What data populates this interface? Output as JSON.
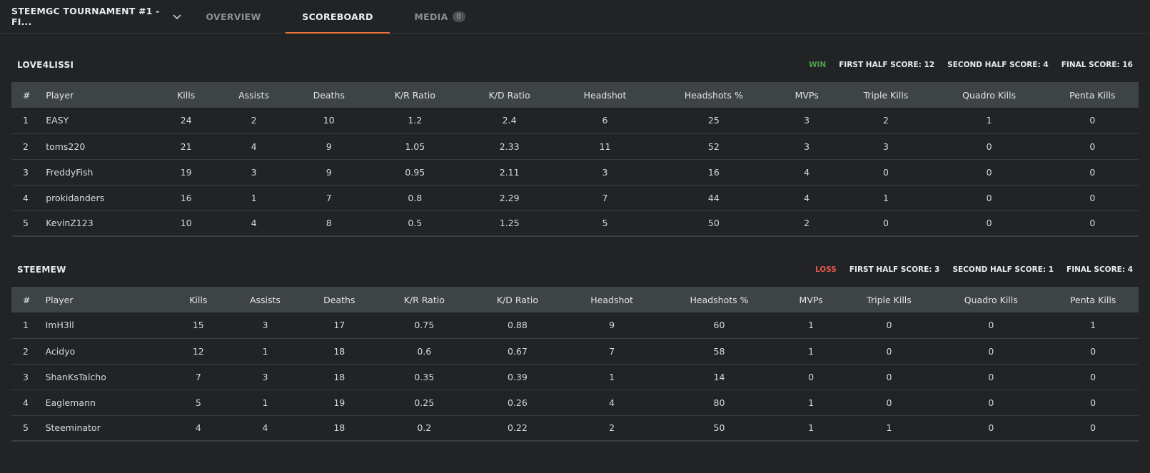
{
  "header": {
    "event_title": "STEEMGC TOURNAMENT #1 - FI...",
    "tabs": {
      "overview": "OVERVIEW",
      "scoreboard": "SCOREBOARD",
      "media": "MEDIA",
      "media_count": "0"
    }
  },
  "columns": [
    "#",
    "Player",
    "Kills",
    "Assists",
    "Deaths",
    "K/R Ratio",
    "K/D Ratio",
    "Headshot",
    "Headshots %",
    "MVPs",
    "Triple Kills",
    "Quadro Kills",
    "Penta Kills"
  ],
  "teams": [
    {
      "name": "LOVE4LISSI",
      "result": "WIN",
      "first_half": "FIRST HALF SCORE: 12",
      "second_half": "SECOND HALF SCORE: 4",
      "final": "FINAL SCORE: 16",
      "players": [
        [
          "1",
          "EASY",
          "24",
          "2",
          "10",
          "1.2",
          "2.4",
          "6",
          "25",
          "3",
          "2",
          "1",
          "0"
        ],
        [
          "2",
          "toms220",
          "21",
          "4",
          "9",
          "1.05",
          "2.33",
          "11",
          "52",
          "3",
          "3",
          "0",
          "0"
        ],
        [
          "3",
          "FreddyFish",
          "19",
          "3",
          "9",
          "0.95",
          "2.11",
          "3",
          "16",
          "4",
          "0",
          "0",
          "0"
        ],
        [
          "4",
          "prokidanders",
          "16",
          "1",
          "7",
          "0.8",
          "2.29",
          "7",
          "44",
          "4",
          "1",
          "0",
          "0"
        ],
        [
          "5",
          "KevinZ123",
          "10",
          "4",
          "8",
          "0.5",
          "1.25",
          "5",
          "50",
          "2",
          "0",
          "0",
          "0"
        ]
      ]
    },
    {
      "name": "STEEMEW",
      "result": "LOSS",
      "first_half": "FIRST HALF SCORE: 3",
      "second_half": "SECOND HALF SCORE: 1",
      "final": "FINAL SCORE: 4",
      "players": [
        [
          "1",
          "ImH3ll",
          "15",
          "3",
          "17",
          "0.75",
          "0.88",
          "9",
          "60",
          "1",
          "0",
          "0",
          "1"
        ],
        [
          "2",
          "Acidyo",
          "12",
          "1",
          "18",
          "0.6",
          "0.67",
          "7",
          "58",
          "1",
          "0",
          "0",
          "0"
        ],
        [
          "3",
          "ShanKsTalcho",
          "7",
          "3",
          "18",
          "0.35",
          "0.39",
          "1",
          "14",
          "0",
          "0",
          "0",
          "0"
        ],
        [
          "4",
          "Eaglemann",
          "5",
          "1",
          "19",
          "0.25",
          "0.26",
          "4",
          "80",
          "1",
          "0",
          "0",
          "0"
        ],
        [
          "5",
          "Steeminator",
          "4",
          "4",
          "18",
          "0.2",
          "0.22",
          "2",
          "50",
          "1",
          "1",
          "0",
          "0"
        ]
      ]
    }
  ],
  "colors": {
    "win": "#4da04d",
    "loss": "#e0574d",
    "tab_accent": "#e8763a"
  },
  "icons": {
    "event_dropdown": "chevron-down-icon"
  }
}
